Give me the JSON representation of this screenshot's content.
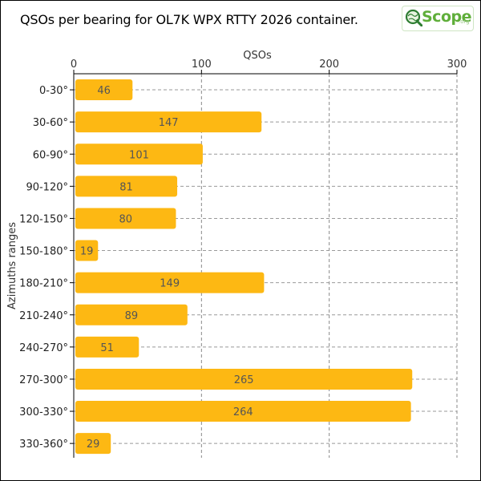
{
  "chart_data": {
    "type": "bar",
    "orientation": "horizontal",
    "title": "QSOs per bearing for OL7K WPX RTTY 2026 container.",
    "xlabel": "QSOs",
    "ylabel": "Azimuths ranges",
    "xlim": [
      0,
      300
    ],
    "x_ticks": [
      0,
      100,
      200,
      300
    ],
    "x_axis_position": "top",
    "grid": true,
    "categories": [
      "0-30°",
      "30-60°",
      "60-90°",
      "90-120°",
      "120-150°",
      "150-180°",
      "180-210°",
      "210-240°",
      "240-270°",
      "270-300°",
      "300-330°",
      "330-360°"
    ],
    "values": [
      46,
      147,
      101,
      81,
      80,
      19,
      149,
      89,
      51,
      265,
      264,
      29
    ],
    "bar_color": "#fdb813"
  },
  "logo": {
    "text": "Scope",
    "suffix": ".org",
    "color": "#5fae3a"
  }
}
